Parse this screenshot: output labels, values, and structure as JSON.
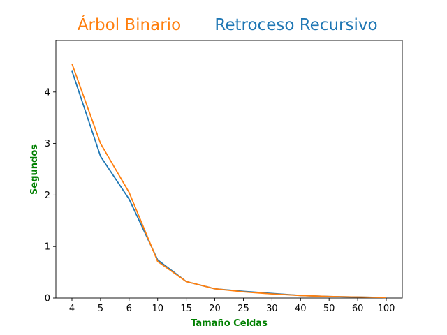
{
  "chart_data": {
    "type": "line",
    "categories": [
      "4",
      "5",
      "6",
      "10",
      "15",
      "20",
      "25",
      "30",
      "40",
      "50",
      "60",
      "100"
    ],
    "series": [
      {
        "name": "Retroceso Recursivo",
        "color": "#1f77b4",
        "values": [
          4.41,
          2.75,
          1.92,
          0.74,
          0.32,
          0.18,
          0.13,
          0.09,
          0.05,
          0.03,
          0.02,
          0.01
        ]
      },
      {
        "name": "Árbol Binario",
        "color": "#ff7f0e",
        "values": [
          4.55,
          3.0,
          2.05,
          0.71,
          0.32,
          0.18,
          0.12,
          0.08,
          0.05,
          0.03,
          0.02,
          0.01
        ]
      }
    ],
    "xlabel": "Tamaño Celdas",
    "ylabel": "Segundos",
    "label_color": "#008000",
    "ylim": [
      0,
      5
    ],
    "yticks": [
      0,
      1,
      2,
      3,
      4
    ],
    "grid": false
  }
}
